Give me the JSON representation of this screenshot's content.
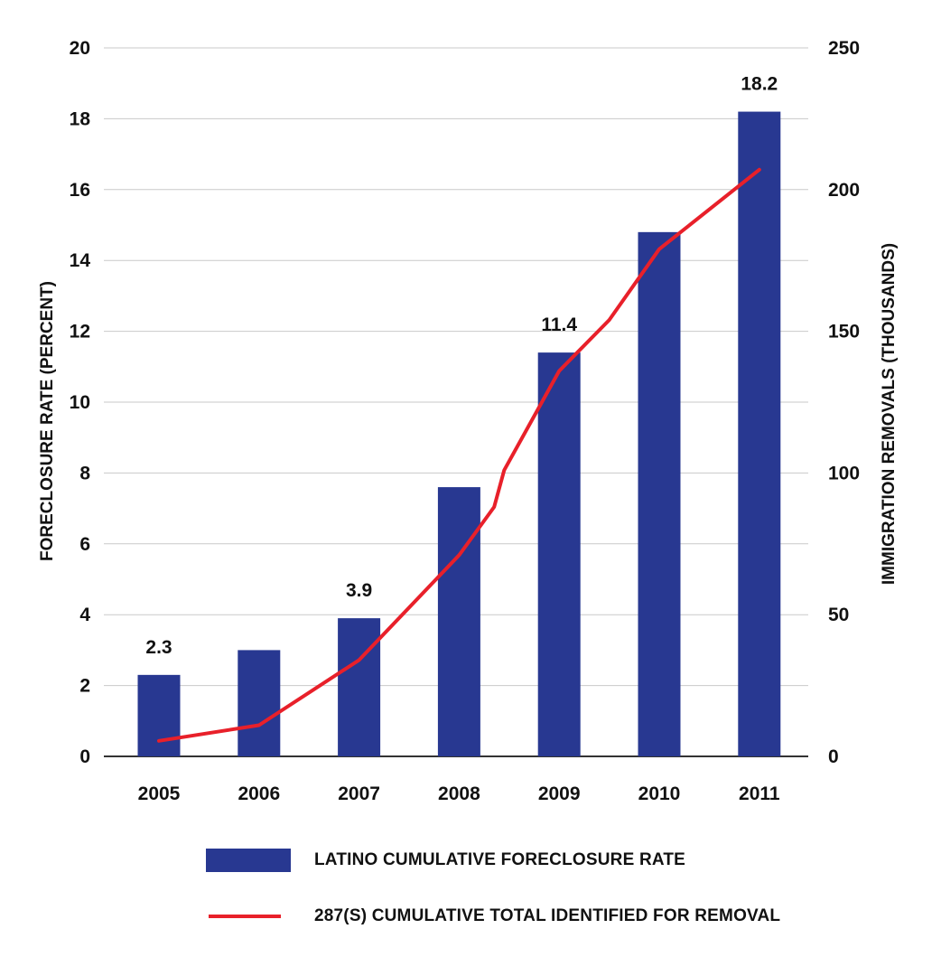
{
  "chart_data": {
    "type": "bar",
    "categories": [
      "2005",
      "2006",
      "2007",
      "2008",
      "2009",
      "2010",
      "2011"
    ],
    "series": [
      {
        "name": "LATINO CUMULATIVE FORECLOSURE RATE",
        "kind": "bar",
        "axis": "left",
        "color": "#283891",
        "values": [
          2.3,
          3.0,
          3.9,
          7.6,
          11.4,
          14.8,
          18.2
        ],
        "labels": [
          "2.3",
          "",
          "3.9",
          "",
          "11.4",
          "",
          "18.2"
        ]
      },
      {
        "name": "287(S) CUMULATIVE TOTAL IDENTIFIED FOR REMOVAL",
        "kind": "line",
        "axis": "right",
        "color": "#e8202a",
        "points": [
          {
            "x": 0,
            "y": 5.5
          },
          {
            "x": 1,
            "y": 11
          },
          {
            "x": 2,
            "y": 34
          },
          {
            "x": 3,
            "y": 71
          },
          {
            "x": 3.35,
            "y": 88
          },
          {
            "x": 3.45,
            "y": 101
          },
          {
            "x": 4,
            "y": 136
          },
          {
            "x": 4.5,
            "y": 154
          },
          {
            "x": 5,
            "y": 179
          },
          {
            "x": 6,
            "y": 207
          }
        ]
      }
    ],
    "ylabel": "FORECLOSURE RATE (PERCENT)",
    "y2label": "IMMIGRATION REMOVALS (THOUSANDS)",
    "ylim": [
      0,
      20
    ],
    "y2lim": [
      0,
      250
    ],
    "yticks": [
      "0",
      "2",
      "4",
      "6",
      "8",
      "10",
      "12",
      "14",
      "16",
      "18",
      "20"
    ],
    "y2ticks": [
      "0",
      "50",
      "100",
      "150",
      "200",
      "250"
    ],
    "grid": true,
    "legend_position": "bottom"
  },
  "legend": {
    "bar_label": "LATINO CUMULATIVE FORECLOSURE RATE",
    "line_label": "287(S) CUMULATIVE TOTAL IDENTIFIED FOR REMOVAL"
  }
}
